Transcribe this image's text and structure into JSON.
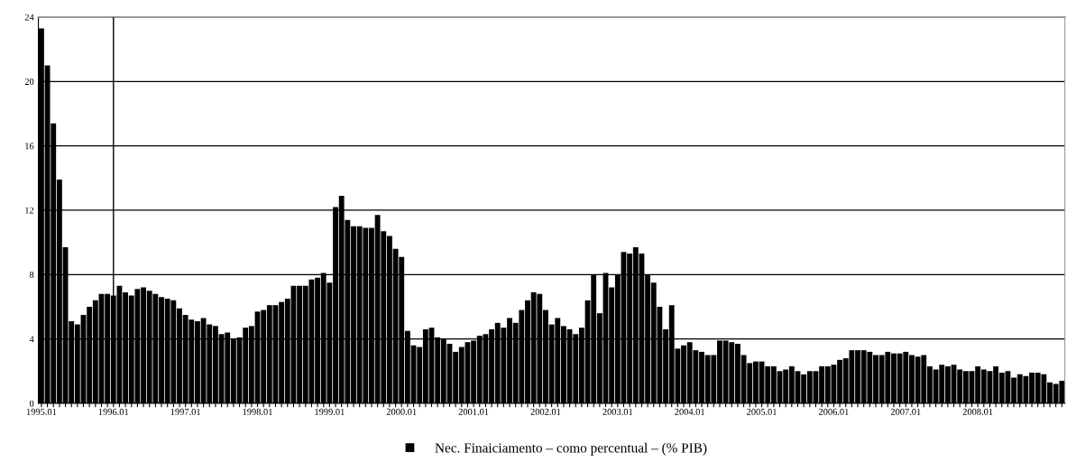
{
  "chart_data": {
    "type": "bar",
    "categories": [
      "1995.01",
      null,
      null,
      null,
      null,
      null,
      null,
      null,
      null,
      null,
      null,
      null,
      "1996.01",
      null,
      null,
      null,
      null,
      null,
      null,
      null,
      null,
      null,
      null,
      null,
      "1997.01",
      null,
      null,
      null,
      null,
      null,
      null,
      null,
      null,
      null,
      null,
      null,
      "1998.01",
      null,
      null,
      null,
      null,
      null,
      null,
      null,
      null,
      null,
      null,
      null,
      "1999.01",
      null,
      null,
      null,
      null,
      null,
      null,
      null,
      null,
      null,
      null,
      null,
      "2000.01",
      null,
      null,
      null,
      null,
      null,
      null,
      null,
      null,
      null,
      null,
      null,
      "2001.01",
      null,
      null,
      null,
      null,
      null,
      null,
      null,
      null,
      null,
      null,
      null,
      "2002.01",
      null,
      null,
      null,
      null,
      null,
      null,
      null,
      null,
      null,
      null,
      null,
      "2003.01",
      null,
      null,
      null,
      null,
      null,
      null,
      null,
      null,
      null,
      null,
      null,
      "2004.01",
      null,
      null,
      null,
      null,
      null,
      null,
      null,
      null,
      null,
      null,
      null,
      "2005.01",
      null,
      null,
      null,
      null,
      null,
      null,
      null,
      null,
      null,
      null,
      null,
      "2006.01",
      null,
      null,
      null,
      null,
      null,
      null,
      null,
      null,
      null,
      null,
      null,
      "2007.01",
      null,
      null,
      null,
      null,
      null,
      null,
      null,
      null,
      null,
      null,
      null,
      "2008.01",
      null,
      null,
      null,
      null,
      null,
      null,
      null,
      null,
      null,
      null,
      null,
      null,
      null,
      null
    ],
    "series": [
      {
        "name": "Nec. Finaiciamento – como percentual – (% PIB)",
        "color": "#000000",
        "values": [
          23.3,
          21.0,
          17.4,
          13.9,
          9.7,
          5.1,
          4.9,
          5.5,
          6.0,
          6.4,
          6.8,
          6.8,
          6.7,
          7.3,
          6.9,
          6.7,
          7.1,
          7.2,
          7.0,
          6.8,
          6.6,
          6.5,
          6.4,
          5.9,
          5.5,
          5.2,
          5.1,
          5.3,
          4.9,
          4.8,
          4.3,
          4.4,
          4.0,
          4.1,
          4.7,
          4.8,
          5.7,
          5.8,
          6.1,
          6.1,
          6.3,
          6.5,
          7.3,
          7.3,
          7.3,
          7.7,
          7.8,
          8.1,
          7.5,
          12.2,
          12.9,
          11.4,
          11.0,
          11.0,
          10.9,
          10.9,
          11.7,
          10.7,
          10.4,
          9.6,
          9.1,
          4.5,
          3.6,
          3.5,
          4.6,
          4.7,
          4.1,
          4.0,
          3.7,
          3.2,
          3.5,
          3.8,
          3.9,
          4.2,
          4.3,
          4.6,
          5.0,
          4.7,
          5.3,
          5.0,
          5.8,
          6.4,
          6.9,
          6.8,
          5.8,
          4.9,
          5.3,
          4.8,
          4.6,
          4.3,
          4.7,
          6.4,
          8.0,
          5.6,
          8.1,
          7.2,
          8.0,
          9.4,
          9.3,
          9.7,
          9.3,
          8.0,
          7.5,
          6.0,
          4.6,
          6.1,
          3.4,
          3.6,
          3.8,
          3.3,
          3.2,
          3.0,
          3.0,
          3.9,
          3.9,
          3.8,
          3.7,
          3.0,
          2.5,
          2.6,
          2.6,
          2.3,
          2.3,
          2.0,
          2.1,
          2.3,
          2.0,
          1.8,
          2.0,
          2.0,
          2.3,
          2.3,
          2.4,
          2.7,
          2.8,
          3.3,
          3.3,
          3.3,
          3.2,
          3.0,
          3.0,
          3.2,
          3.1,
          3.1,
          3.2,
          3.0,
          2.9,
          3.0,
          2.3,
          2.1,
          2.4,
          2.3,
          2.4,
          2.1,
          2.0,
          2.0,
          2.3,
          2.1,
          2.0,
          2.3,
          1.9,
          2.0,
          1.6,
          1.8,
          1.7,
          1.9,
          1.9,
          1.8,
          1.3,
          1.2,
          1.4
        ]
      }
    ],
    "ylim": [
      0,
      24
    ],
    "yticks": [
      0,
      4,
      8,
      12,
      16,
      20,
      24
    ],
    "grid": "y",
    "legend": "bottom",
    "ref_lines": [
      {
        "axis": "x",
        "value": "1996.01",
        "color": "#000000"
      }
    ]
  }
}
